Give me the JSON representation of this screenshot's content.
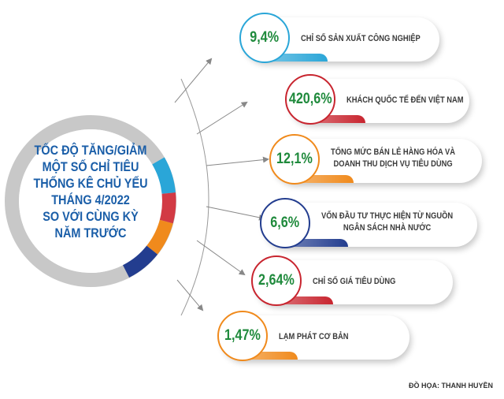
{
  "title": "TỐC ĐỘ TĂNG/GIẢM MỘT SỐ CHỈ TIÊU THỐNG KÊ CHỦ YẾU THÁNG 4/2022 SO VỚI CÙNG KỲ NĂM TRƯỚC",
  "title_lines": [
    "TỐC ĐỘ TĂNG/GIẢM",
    "MỘT SỐ CHỈ TIÊU",
    "THỐNG KÊ CHỦ YẾU",
    "THÁNG 4/2022",
    "SO VỚI CÙNG KỲ",
    "NĂM TRƯỚC"
  ],
  "indicators": [
    {
      "value": "9,4%",
      "label_lines": [
        "CHỈ SỐ SẢN XUẤT CÔNG NGHIỆP"
      ],
      "color": "#2aa6d8"
    },
    {
      "value": "420,6%",
      "label_lines": [
        "KHÁCH QUỐC TẾ ĐẾN VIỆT NAM"
      ],
      "color": "#c8252f"
    },
    {
      "value": "12,1%",
      "label_lines": [
        "TỔNG MỨC BÁN LẺ HÀNG HÓA VÀ",
        "DOANH THU DỊCH VỤ TIÊU DÙNG"
      ],
      "color": "#f08a1c"
    },
    {
      "value": "6,6%",
      "label_lines": [
        "VỐN ĐẦU TƯ THỰC HIỆN TỪ NGUỒN",
        "NGÂN SÁCH NHÀ NƯỚC"
      ],
      "color": "#233d8f"
    },
    {
      "value": "2,64%",
      "label_lines": [
        "CHỈ SỐ GIÁ TIÊU DÙNG"
      ],
      "color": "#c8252f"
    },
    {
      "value": "1,47%",
      "label_lines": [
        "LẠM PHÁT CƠ BẢN"
      ],
      "color": "#f08a1c"
    }
  ],
  "credit": "ĐỒ HỌA: THANH HUYỀN",
  "colors": {
    "title": "#1a5ea8",
    "value": "#1f8a3c",
    "ring": "#c8c8c8"
  }
}
